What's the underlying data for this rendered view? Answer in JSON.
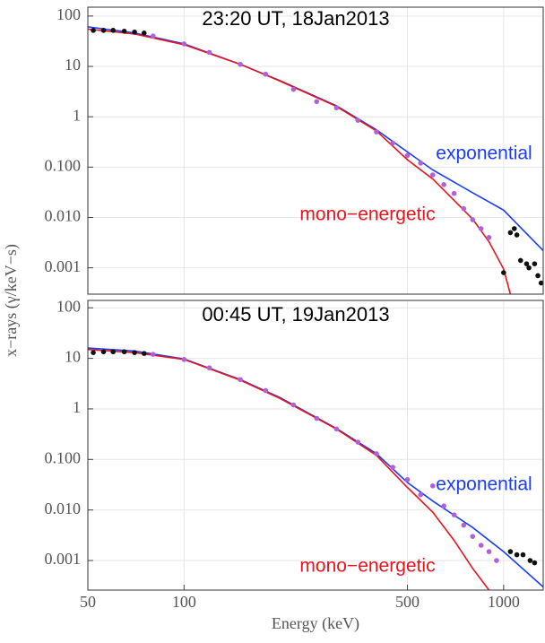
{
  "chart_data": [
    {
      "type": "line",
      "title": "23:20 UT, 18Jan2013",
      "y_label": "x−rays (γ/keV−s)",
      "xlim": [
        50,
        1330
      ],
      "ylim": [
        0.0003,
        150
      ],
      "log_x": true,
      "log_y": true,
      "grid": true,
      "yticks": [
        100,
        10,
        1,
        {
          "value": 0.1,
          "label": "0.100"
        },
        {
          "value": 0.01,
          "label": "0.010"
        },
        0.001
      ],
      "annotations": [
        {
          "text": "exponential",
          "color": "#1a3cff"
        },
        {
          "text": "mono−energetic",
          "color": "#e8141e"
        }
      ],
      "series": [
        {
          "name": "exponential",
          "color": "#1a3cff",
          "style": "line",
          "x": [
            50,
            70,
            100,
            150,
            200,
            300,
            400,
            500,
            600,
            800,
            1000,
            1330
          ],
          "values": [
            61,
            46,
            28,
            11,
            5.2,
            1.65,
            0.55,
            0.2,
            0.088,
            0.031,
            0.014,
            0.0022
          ]
        },
        {
          "name": "mono−energetic",
          "color": "#e8141e",
          "style": "line",
          "x": [
            50,
            70,
            100,
            150,
            200,
            300,
            400,
            500,
            600,
            800,
            900,
            1000,
            1050
          ],
          "values": [
            55,
            44,
            27,
            11,
            5.1,
            1.6,
            0.52,
            0.14,
            0.058,
            0.0093,
            0.0033,
            0.00095,
            0.0003
          ]
        },
        {
          "color": "#b060d8",
          "style": "points",
          "x": [
            80,
            100,
            120,
            150,
            180,
            220,
            260,
            300,
            350,
            400,
            450,
            500,
            550,
            600,
            650,
            700,
            750,
            800,
            850,
            900
          ],
          "values": [
            40,
            28,
            19,
            11,
            7,
            3.5,
            2.0,
            1.5,
            0.85,
            0.5,
            0.3,
            0.17,
            0.12,
            0.07,
            0.045,
            0.03,
            0.015,
            0.009,
            0.006,
            0.004
          ]
        },
        {
          "color": "#111111",
          "style": "points",
          "x": [
            52,
            56,
            60,
            65,
            70,
            75,
            1000,
            1050,
            1080,
            1100,
            1130,
            1180,
            1200,
            1250,
            1280,
            1310
          ],
          "values": [
            52,
            52,
            52,
            50,
            48,
            46,
            0.0008,
            0.005,
            0.006,
            0.0045,
            0.0014,
            0.0012,
            0.001,
            0.0012,
            0.0007,
            0.0005
          ]
        }
      ]
    },
    {
      "type": "line",
      "title": "00:45 UT, 19Jan2013",
      "x_label": "Energy (keV)",
      "xlim": [
        50,
        1330
      ],
      "ylim": [
        0.00026,
        140
      ],
      "log_x": true,
      "log_y": true,
      "grid": true,
      "xticks": [
        50,
        100,
        500,
        1000
      ],
      "yticks": [
        100,
        10,
        1,
        {
          "value": 0.1,
          "label": "0.100"
        },
        {
          "value": 0.01,
          "label": "0.010"
        },
        0.001
      ],
      "annotations": [
        {
          "text": "exponential",
          "color": "#1a3cff"
        },
        {
          "text": "mono−energetic",
          "color": "#e8141e"
        }
      ],
      "series": [
        {
          "name": "exponential",
          "color": "#1a3cff",
          "style": "line",
          "x": [
            50,
            70,
            100,
            150,
            200,
            300,
            400,
            500,
            600,
            800,
            1000,
            1330
          ],
          "values": [
            16,
            14,
            9.7,
            3.8,
            1.66,
            0.41,
            0.13,
            0.035,
            0.015,
            0.0045,
            0.0015,
            0.0003
          ]
        },
        {
          "name": "mono−energetic",
          "color": "#e8141e",
          "style": "line",
          "x": [
            50,
            70,
            100,
            150,
            200,
            300,
            400,
            500,
            600,
            700,
            800,
            900
          ],
          "values": [
            15,
            13,
            9.5,
            3.7,
            1.6,
            0.4,
            0.12,
            0.028,
            0.009,
            0.0025,
            0.0007,
            0.00026
          ]
        },
        {
          "color": "#b060d8",
          "style": "points",
          "x": [
            80,
            100,
            120,
            150,
            180,
            220,
            260,
            300,
            350,
            400,
            450,
            500,
            550,
            600,
            650,
            700,
            750,
            800,
            850,
            900,
            950
          ],
          "values": [
            12,
            9.5,
            6.5,
            3.8,
            2.3,
            1.2,
            0.65,
            0.4,
            0.22,
            0.13,
            0.07,
            0.04,
            0.02,
            0.03,
            0.012,
            0.008,
            0.005,
            0.003,
            0.002,
            0.0015,
            0.001
          ]
        },
        {
          "color": "#111111",
          "style": "points",
          "x": [
            52,
            56,
            60,
            65,
            70,
            75,
            1050,
            1100,
            1150,
            1210,
            1250
          ],
          "values": [
            13,
            13.5,
            13.5,
            13.5,
            13,
            12.5,
            0.0015,
            0.0013,
            0.0013,
            0.001,
            0.0009
          ]
        }
      ]
    }
  ]
}
